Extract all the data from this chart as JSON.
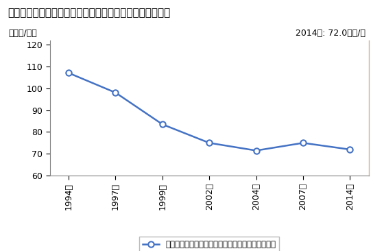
{
  "title": "その他の小売業の店舗１平米当たり年間商品販売額の推移",
  "ylabel": "［万円/㎡］",
  "annotation": "2014年: 72.0万円/㎡",
  "years": [
    "1994年",
    "1997年",
    "1999年",
    "2002年",
    "2004年",
    "2007年",
    "2014年"
  ],
  "values": [
    107.0,
    98.0,
    83.5,
    75.0,
    71.5,
    75.0,
    72.0
  ],
  "ylim": [
    60,
    122
  ],
  "yticks": [
    60,
    70,
    80,
    90,
    100,
    110,
    120
  ],
  "line_color": "#4472C4",
  "marker_face": "#FFFFFF",
  "legend_label": "その他の小売業の店舗１平米当たり年間商品販売額",
  "background_color": "#FFFFFF",
  "plot_bg_color": "#FFFFFF",
  "right_border_color": "#C8B89A",
  "title_fontsize": 11,
  "annotation_fontsize": 9,
  "ylabel_fontsize": 9,
  "tick_fontsize": 9,
  "legend_fontsize": 8.5
}
